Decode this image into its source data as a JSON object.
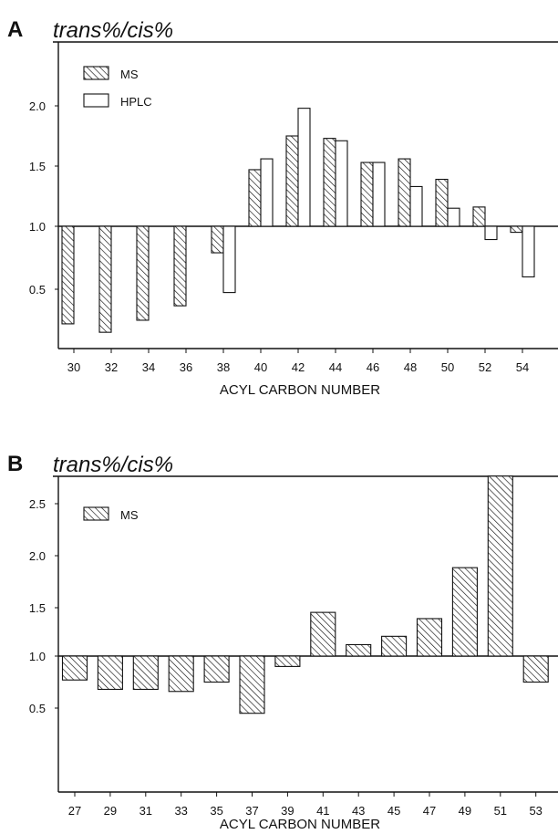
{
  "chart_data": [
    {
      "type": "bar",
      "panel_label": "A",
      "title": "trans%/cis%",
      "xlabel": "ACYL CARBON NUMBER",
      "ylabel": "",
      "baseline": 1.0,
      "ylim": [
        0.0,
        2.5
      ],
      "yticks": [
        "0.5",
        "1.0",
        "1.5",
        "2.0"
      ],
      "categories": [
        "30",
        "32",
        "34",
        "36",
        "38",
        "40",
        "42",
        "44",
        "46",
        "48",
        "50",
        "52",
        "54"
      ],
      "legend_position": "top-left",
      "grid": false,
      "series": [
        {
          "name": "MS",
          "pattern": "hatched",
          "values": [
            0.19,
            0.12,
            0.22,
            0.34,
            0.78,
            1.47,
            1.75,
            1.73,
            1.53,
            1.56,
            1.39,
            1.16,
            0.95
          ]
        },
        {
          "name": "HPLC",
          "pattern": "open",
          "values": [
            null,
            null,
            null,
            null,
            0.45,
            1.56,
            1.98,
            1.71,
            1.53,
            1.33,
            1.15,
            0.89,
            0.58
          ]
        }
      ]
    },
    {
      "type": "bar",
      "panel_label": "B",
      "title": "trans%/cis%",
      "xlabel": "ACYL CARBON NUMBER",
      "ylabel": "",
      "baseline": 1.0,
      "ylim": [
        0.0,
        3.0
      ],
      "yticks": [
        "0.5",
        "1.0",
        "1.5",
        "2.0",
        "2.5"
      ],
      "categories": [
        "27",
        "29",
        "31",
        "33",
        "35",
        "37",
        "39",
        "41",
        "43",
        "45",
        "47",
        "49",
        "51",
        "53"
      ],
      "legend_position": "top-left",
      "grid": false,
      "series": [
        {
          "name": "MS",
          "pattern": "hatched",
          "values": [
            0.77,
            0.68,
            0.68,
            0.66,
            0.75,
            0.45,
            0.9,
            1.42,
            1.11,
            1.19,
            1.36,
            1.85,
            2.73,
            0.75
          ]
        }
      ]
    }
  ]
}
